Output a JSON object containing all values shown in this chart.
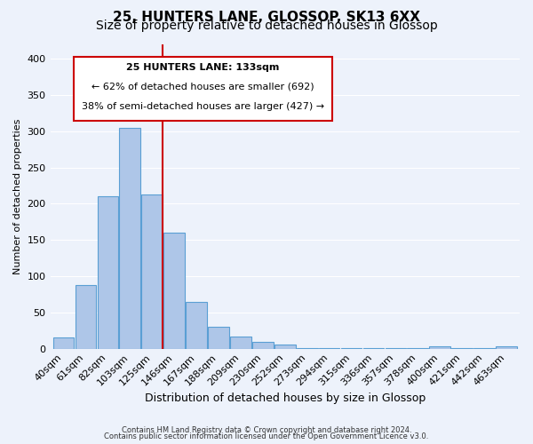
{
  "title": "25, HUNTERS LANE, GLOSSOP, SK13 6XX",
  "subtitle": "Size of property relative to detached houses in Glossop",
  "xlabel": "Distribution of detached houses by size in Glossop",
  "ylabel": "Number of detached properties",
  "bar_labels": [
    "40sqm",
    "61sqm",
    "82sqm",
    "103sqm",
    "125sqm",
    "146sqm",
    "167sqm",
    "188sqm",
    "209sqm",
    "230sqm",
    "252sqm",
    "273sqm",
    "294sqm",
    "315sqm",
    "336sqm",
    "357sqm",
    "378sqm",
    "400sqm",
    "421sqm",
    "442sqm",
    "463sqm"
  ],
  "bar_values": [
    15,
    88,
    210,
    305,
    213,
    160,
    64,
    30,
    17,
    9,
    6,
    1,
    1,
    1,
    1,
    1,
    1,
    3,
    1,
    1,
    3
  ],
  "bar_color": "#aec6e8",
  "bar_edge_color": "#5a9fd4",
  "ylim": [
    0,
    420
  ],
  "yticks": [
    0,
    50,
    100,
    150,
    200,
    250,
    300,
    350,
    400
  ],
  "vline_x": 4.475,
  "vline_color": "#cc0000",
  "annotation_title": "25 HUNTERS LANE: 133sqm",
  "annotation_line1": "← 62% of detached houses are smaller (692)",
  "annotation_line2": "38% of semi-detached houses are larger (427) →",
  "annotation_box_color": "#ffffff",
  "annotation_box_edge_color": "#cc0000",
  "footer_line1": "Contains HM Land Registry data © Crown copyright and database right 2024.",
  "footer_line2": "Contains public sector information licensed under the Open Government Licence v3.0.",
  "bg_color": "#edf2fb",
  "grid_color": "#ffffff",
  "title_fontsize": 11,
  "subtitle_fontsize": 10
}
